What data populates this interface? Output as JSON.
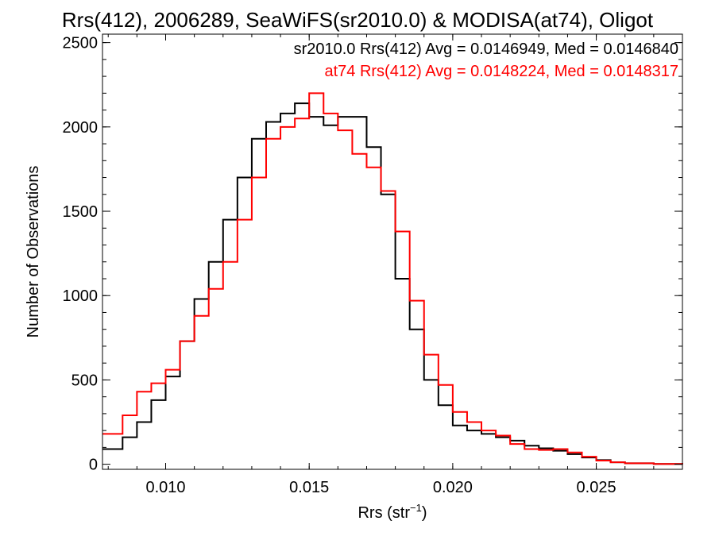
{
  "chart_data": {
    "type": "line",
    "title": "Rrs(412), 2006289, SeaWiFS(sr2010.0) & MODISA(at74), Oligot",
    "xlabel_main": "Rrs (str",
    "xlabel_sup": "−1",
    "xlabel_end": ")",
    "ylabel": "Number of Observations",
    "xlim": [
      0.0078,
      0.028
    ],
    "ylim": [
      -30,
      2550
    ],
    "x_ticks": [
      0.01,
      0.015,
      0.02,
      0.025
    ],
    "x_tick_labels": [
      "0.010",
      "0.015",
      "0.020",
      "0.025"
    ],
    "y_ticks": [
      0,
      500,
      1000,
      1500,
      2000,
      2500
    ],
    "y_tick_labels": [
      "0",
      "500",
      "1000",
      "1500",
      "2000",
      "2500"
    ],
    "grid": false,
    "legend_position": "top-right",
    "line_style": "step",
    "series": [
      {
        "name": "sr2010.0 Rrs(412) Avg = 0.0146949, Med = 0.0146840",
        "color": "#000000",
        "points": [
          [
            0.0078,
            90
          ],
          [
            0.0085,
            160
          ],
          [
            0.009,
            250
          ],
          [
            0.0095,
            380
          ],
          [
            0.01,
            520
          ],
          [
            0.0105,
            730
          ],
          [
            0.011,
            980
          ],
          [
            0.0115,
            1200
          ],
          [
            0.012,
            1450
          ],
          [
            0.0125,
            1700
          ],
          [
            0.013,
            1930
          ],
          [
            0.0135,
            2030
          ],
          [
            0.014,
            2080
          ],
          [
            0.0145,
            2140
          ],
          [
            0.015,
            2060
          ],
          [
            0.0155,
            2010
          ],
          [
            0.016,
            2060
          ],
          [
            0.0165,
            2060
          ],
          [
            0.017,
            1880
          ],
          [
            0.0175,
            1600
          ],
          [
            0.018,
            1100
          ],
          [
            0.0185,
            800
          ],
          [
            0.019,
            500
          ],
          [
            0.0195,
            350
          ],
          [
            0.02,
            230
          ],
          [
            0.0205,
            200
          ],
          [
            0.021,
            180
          ],
          [
            0.0215,
            160
          ],
          [
            0.022,
            140
          ],
          [
            0.0225,
            110
          ],
          [
            0.023,
            95
          ],
          [
            0.0235,
            80
          ],
          [
            0.024,
            60
          ],
          [
            0.0245,
            40
          ],
          [
            0.025,
            25
          ],
          [
            0.0255,
            12
          ],
          [
            0.026,
            6
          ],
          [
            0.027,
            2
          ],
          [
            0.028,
            0
          ]
        ]
      },
      {
        "name": "at74 Rrs(412) Avg = 0.0148224, Med = 0.0148317",
        "color": "#ff0000",
        "points": [
          [
            0.0078,
            180
          ],
          [
            0.0085,
            290
          ],
          [
            0.009,
            430
          ],
          [
            0.0095,
            480
          ],
          [
            0.01,
            560
          ],
          [
            0.0105,
            730
          ],
          [
            0.011,
            880
          ],
          [
            0.0115,
            1040
          ],
          [
            0.012,
            1200
          ],
          [
            0.0125,
            1450
          ],
          [
            0.013,
            1700
          ],
          [
            0.0135,
            1930
          ],
          [
            0.014,
            2000
          ],
          [
            0.0145,
            2050
          ],
          [
            0.015,
            2200
          ],
          [
            0.0155,
            2080
          ],
          [
            0.016,
            1980
          ],
          [
            0.0165,
            1840
          ],
          [
            0.017,
            1760
          ],
          [
            0.0175,
            1620
          ],
          [
            0.018,
            1380
          ],
          [
            0.0185,
            970
          ],
          [
            0.019,
            650
          ],
          [
            0.0195,
            470
          ],
          [
            0.02,
            310
          ],
          [
            0.0205,
            250
          ],
          [
            0.021,
            200
          ],
          [
            0.0215,
            170
          ],
          [
            0.022,
            120
          ],
          [
            0.0225,
            90
          ],
          [
            0.023,
            85
          ],
          [
            0.0235,
            90
          ],
          [
            0.024,
            70
          ],
          [
            0.0245,
            45
          ],
          [
            0.025,
            22
          ],
          [
            0.0255,
            12
          ],
          [
            0.026,
            6
          ],
          [
            0.027,
            2
          ],
          [
            0.028,
            0
          ]
        ]
      }
    ]
  }
}
